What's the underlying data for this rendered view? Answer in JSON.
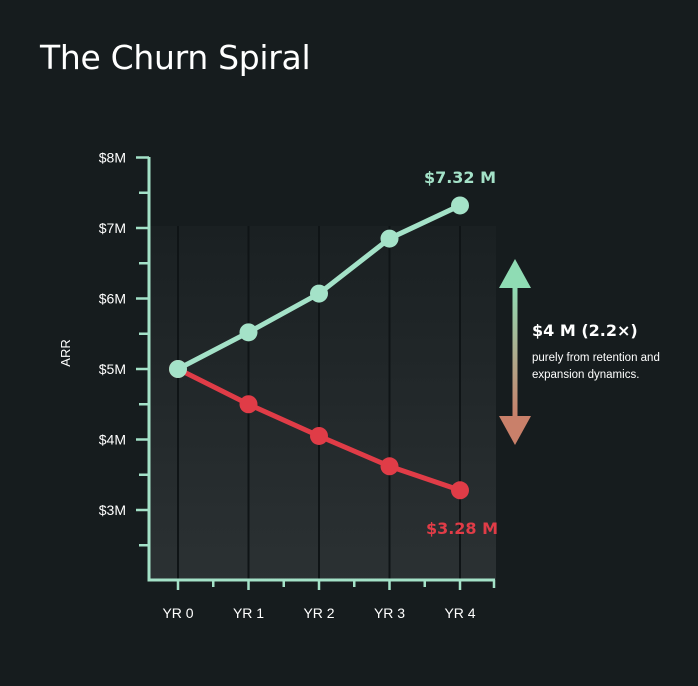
{
  "title": "The Churn Spiral",
  "colors": {
    "background": "#161c1e",
    "axis": "#a4e2c8",
    "high_series": "#a4e2c8",
    "low_series": "#e03c47",
    "arrow_top": "#8fdcb4",
    "arrow_bottom": "#c9806a"
  },
  "callout": {
    "headline": "$4 M (2.2×)",
    "subtext": "purely from retention and expansion dynamics.",
    "icon": "double-arrow-icon"
  },
  "chart_data": {
    "type": "line",
    "title": "The Churn Spiral",
    "xlabel": "",
    "ylabel": "ARR",
    "categories": [
      "YR 0",
      "YR 1",
      "YR 2",
      "YR 3",
      "YR 4"
    ],
    "y_ticks": [
      "$3M",
      "$4M",
      "$5M",
      "$6M",
      "$7M",
      "$8M"
    ],
    "ylim": [
      2,
      8
    ],
    "grid": false,
    "series": [
      {
        "key": "high",
        "values": [
          5.0,
          5.52,
          6.07,
          6.85,
          7.32
        ],
        "end_label": "$7.32 M"
      },
      {
        "key": "low",
        "values": [
          5.0,
          4.5,
          4.05,
          3.62,
          3.28
        ],
        "end_label": "$3.28 M"
      }
    ]
  }
}
